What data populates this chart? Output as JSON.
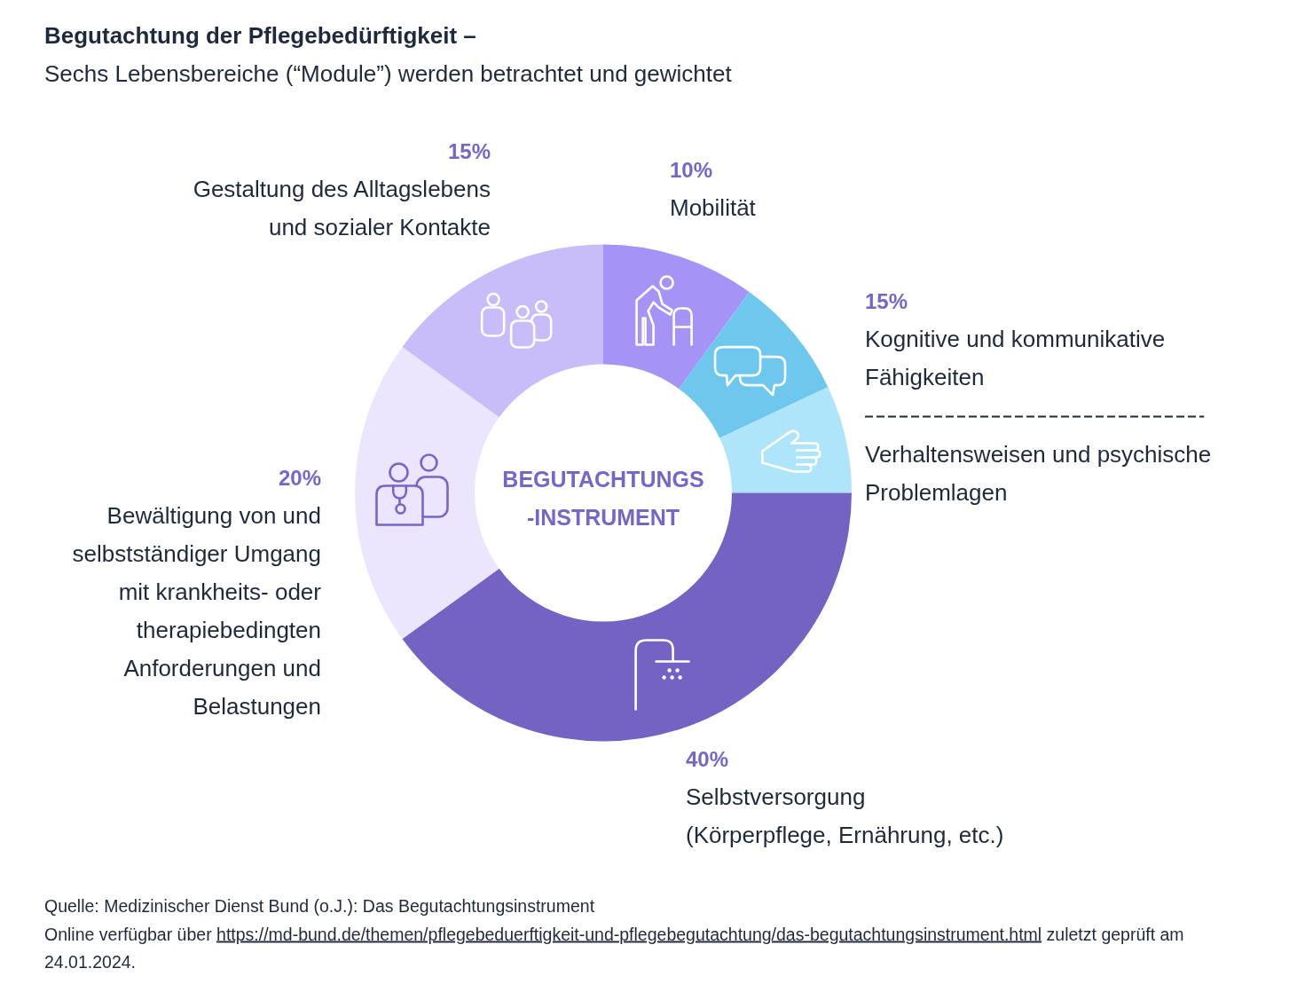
{
  "chart_data": {
    "type": "donut",
    "title": "Begutachtung der Pflegebedürftigkeit –",
    "subtitle": "Sechs Lebensbereiche (“Module”) werden betrachtet und gewichtet",
    "categories": [
      "Mobilität",
      "Kognitive und kommunikative Fähigkeiten",
      "Verhaltensweisen und psychische Problemlagen",
      "Selbstversorgung (Körperpflege, Ernährung, etc.)",
      "Bewältigung von und selbstständiger Umgang mit krankheits- oder therapiebedingten Anforderungen und Belastungen",
      "Gestaltung des Alltagslebens und sozialer Kontakte"
    ],
    "values": [
      10,
      8,
      7,
      40,
      20,
      15
    ],
    "colors": [
      "#a594f5",
      "#6ec8ee",
      "#aee5fb",
      "#7563c4",
      "#ebe6fd",
      "#c8bdf9"
    ],
    "value_labels": [
      "10%",
      null,
      null,
      "40%",
      "20%",
      "15%"
    ],
    "annotations": [
      "BEGUTACHTUNGS-INSTRUMENT",
      "15%",
      "Quelle: Medizinischer Dienst Bund (o.J.): Das Begutachtungsinstrument",
      "Online verfügbar über https://md-bund.de/themen/pflegebeduerftigkeit-und-pflegebegutachtung/das-begutachtungsinstrument.html zuletzt geprüft am 24.01.2024."
    ]
  }
}
